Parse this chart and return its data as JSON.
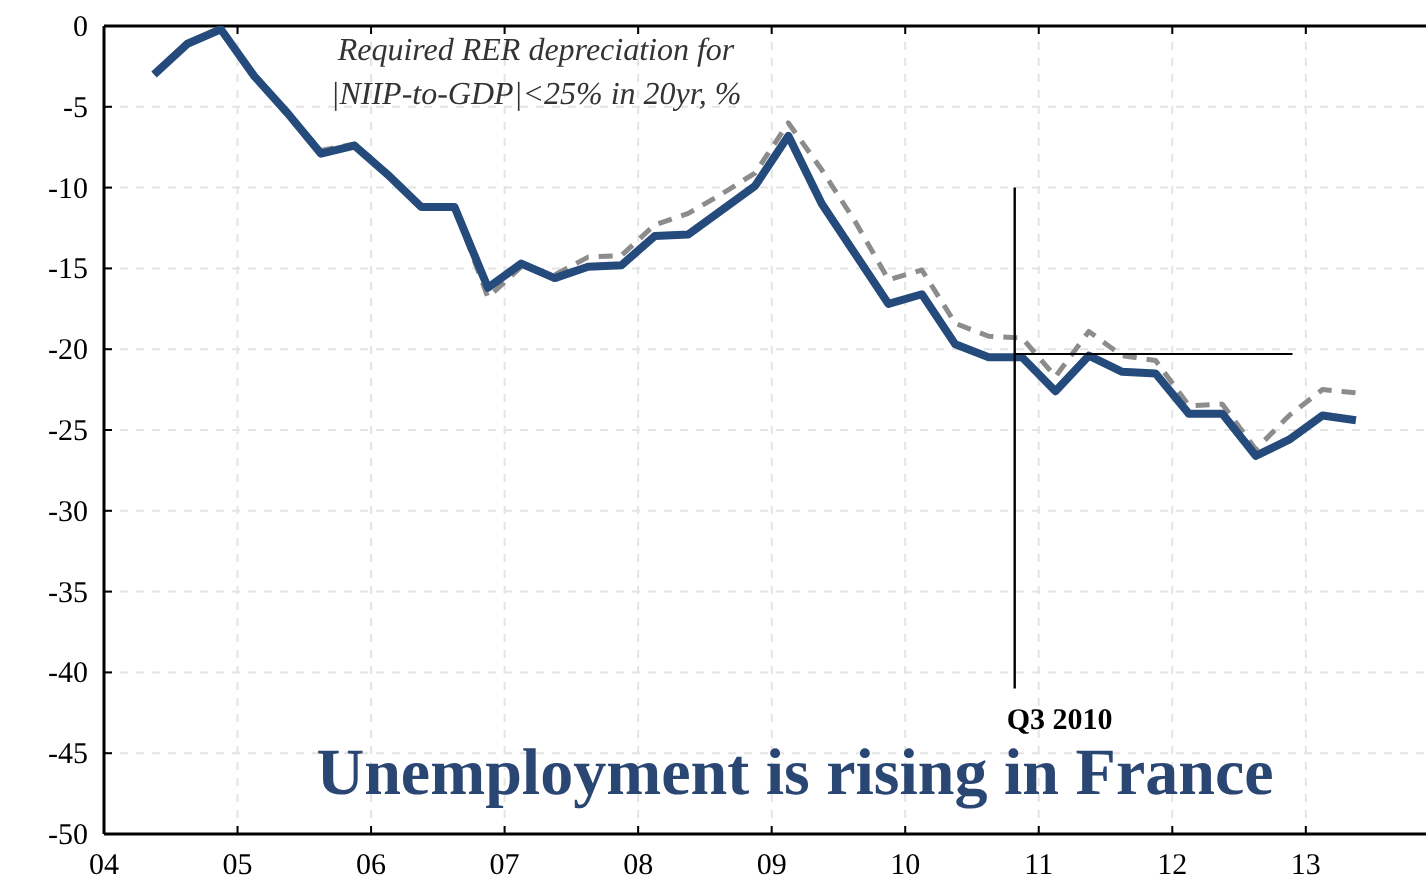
{
  "chart_data": {
    "type": "line",
    "title": "Unemployment is rising in France",
    "x": [
      2004.375,
      2004.625,
      2004.875,
      2005.125,
      2005.375,
      2005.625,
      2005.875,
      2006.125,
      2006.375,
      2006.625,
      2006.875,
      2007.125,
      2007.375,
      2007.625,
      2007.875,
      2008.125,
      2008.375,
      2008.625,
      2008.875,
      2009.125,
      2009.375,
      2009.625,
      2009.875,
      2010.125,
      2010.375,
      2010.625,
      2010.875,
      2011.125,
      2011.375,
      2011.625,
      2011.875,
      2012.125,
      2012.375,
      2012.625,
      2012.875,
      2013.125,
      2013.375
    ],
    "series": [
      {
        "color": "#8c8c8c",
        "line_style": "dashed",
        "values": [
          -3,
          -1.1,
          -0.1,
          -3.1,
          -5.4,
          -7.7,
          -7.3,
          -9.1,
          -11.1,
          -11.2,
          -16.8,
          -14.9,
          -15.4,
          -14.3,
          -14.2,
          -12.3,
          -11.6,
          -10.4,
          -9.1,
          -6.0,
          -8.9,
          -12.1,
          -15.7,
          -15.1,
          -18.4,
          -19.2,
          -19.3,
          -21.7,
          -18.9,
          -20.4,
          -20.7,
          -23.5,
          -23.4,
          -26.2,
          -24.1,
          -22.5,
          -22.7
        ]
      },
      {
        "color": "#254a7c",
        "line_style": "solid",
        "values": [
          -3,
          -1.1,
          -0.2,
          -3.1,
          -5.4,
          -7.9,
          -7.4,
          -9.2,
          -11.2,
          -11.2,
          -16.2,
          -14.7,
          -15.6,
          -14.9,
          -14.8,
          -13.0,
          -12.9,
          -11.4,
          -9.9,
          -6.8,
          -11.0,
          -14.1,
          -17.2,
          -16.6,
          -19.7,
          -20.5,
          -20.5,
          -22.6,
          -20.4,
          -21.4,
          -21.5,
          -24.0,
          -24.0,
          -26.6,
          -25.6,
          -24.1,
          -24.4
        ]
      }
    ],
    "xlim": [
      2004,
      2013.9
    ],
    "xticks": [
      {
        "value": 2004,
        "label": "04"
      },
      {
        "value": 2005,
        "label": "05"
      },
      {
        "value": 2006,
        "label": "06"
      },
      {
        "value": 2007,
        "label": "07"
      },
      {
        "value": 2008,
        "label": "08"
      },
      {
        "value": 2009,
        "label": "09"
      },
      {
        "value": 2010,
        "label": "10"
      },
      {
        "value": 2011,
        "label": "11"
      },
      {
        "value": 2012,
        "label": "12"
      },
      {
        "value": 2013,
        "label": "13"
      }
    ],
    "ylim": [
      -50,
      0
    ],
    "yticks": [
      0,
      -5,
      -10,
      -15,
      -20,
      -25,
      -30,
      -35,
      -40,
      -45,
      -50
    ],
    "grid": true,
    "marker": "none",
    "ref_lines": [
      {
        "axis": "x",
        "value": 2010.82,
        "label": "Q3 2010",
        "color": "#000000"
      },
      {
        "axis": "y",
        "value": -20.3,
        "color": "#000000"
      }
    ],
    "annotations": [
      "Required RER depreciation for\n|NIIP-to-GDP|<25% in 20yr, %"
    ]
  }
}
